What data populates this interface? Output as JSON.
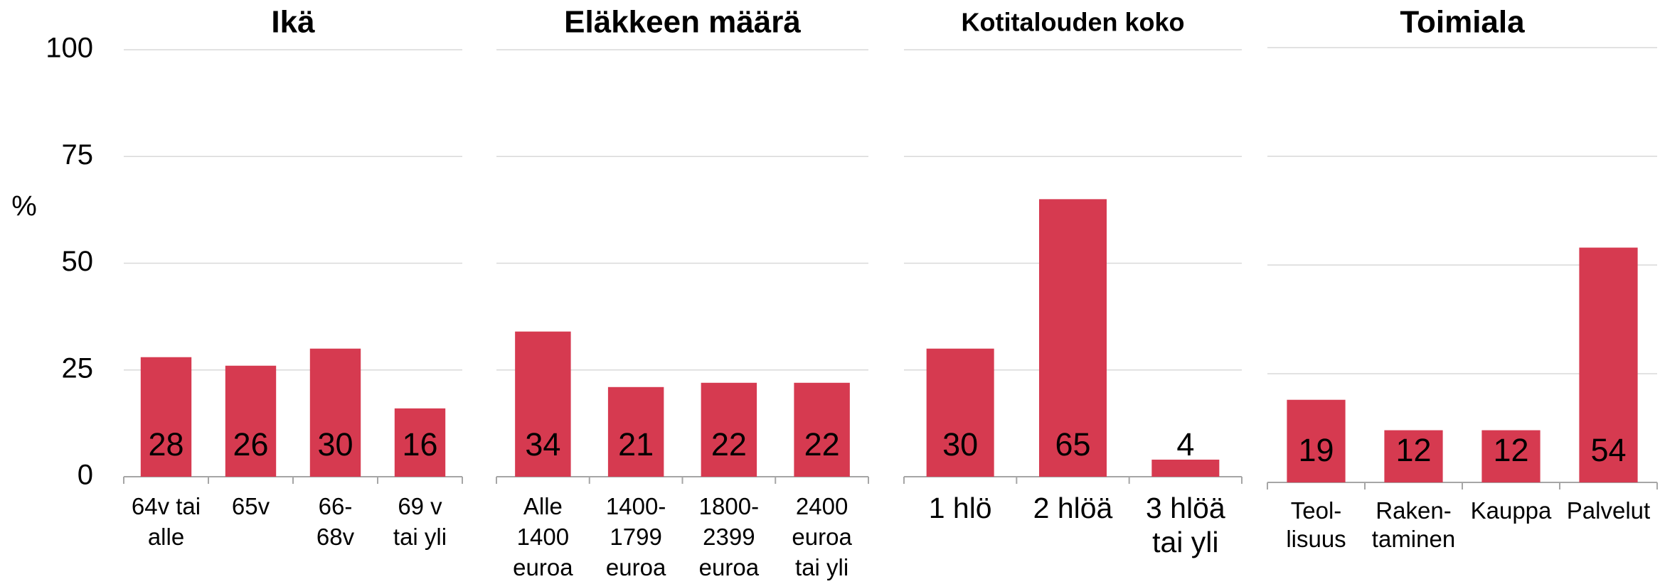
{
  "chart_data": [
    {
      "type": "bar",
      "title": "Ikä",
      "ylabel": "%",
      "color": "#d63a50",
      "grid": true,
      "categories": [
        "64v tai\nalle",
        "65v",
        "66-\n68v",
        "69 v\ntai yli"
      ],
      "values": [
        28,
        26,
        30,
        16
      ],
      "ylim": [
        0,
        100
      ],
      "yticks": [
        0,
        25,
        50,
        75,
        100
      ]
    },
    {
      "type": "bar",
      "title": "Eläkkeen määrä",
      "color": "#d63a50",
      "grid": true,
      "categories": [
        "Alle\n1400\neuroa",
        "1400-\n1799\neuroa",
        "1800-\n2399\neuroa",
        "2400\neuroa\ntai yli"
      ],
      "values": [
        34,
        21,
        22,
        22
      ],
      "ylim": [
        0,
        100
      ],
      "yticks": [
        0,
        25,
        50,
        75,
        100
      ]
    },
    {
      "type": "bar",
      "title": "Kotitalouden koko",
      "color": "#d63a50",
      "grid": true,
      "categories": [
        "1 hlö",
        "2 hlöä",
        "3 hlöä\ntai yli"
      ],
      "values": [
        30,
        65,
        4
      ],
      "ylim": [
        0,
        100
      ],
      "yticks": [
        0,
        25,
        50,
        75,
        100
      ]
    },
    {
      "type": "bar",
      "title": "Toimiala",
      "color": "#d63a50",
      "grid": true,
      "categories": [
        "Teol-\nlisuus",
        "Raken-\ntaminen",
        "Kauppa",
        "Palvelut"
      ],
      "values": [
        19,
        12,
        12,
        54
      ],
      "ylim": [
        0,
        100
      ],
      "yticks": [
        0,
        25,
        50,
        75,
        100
      ]
    }
  ]
}
